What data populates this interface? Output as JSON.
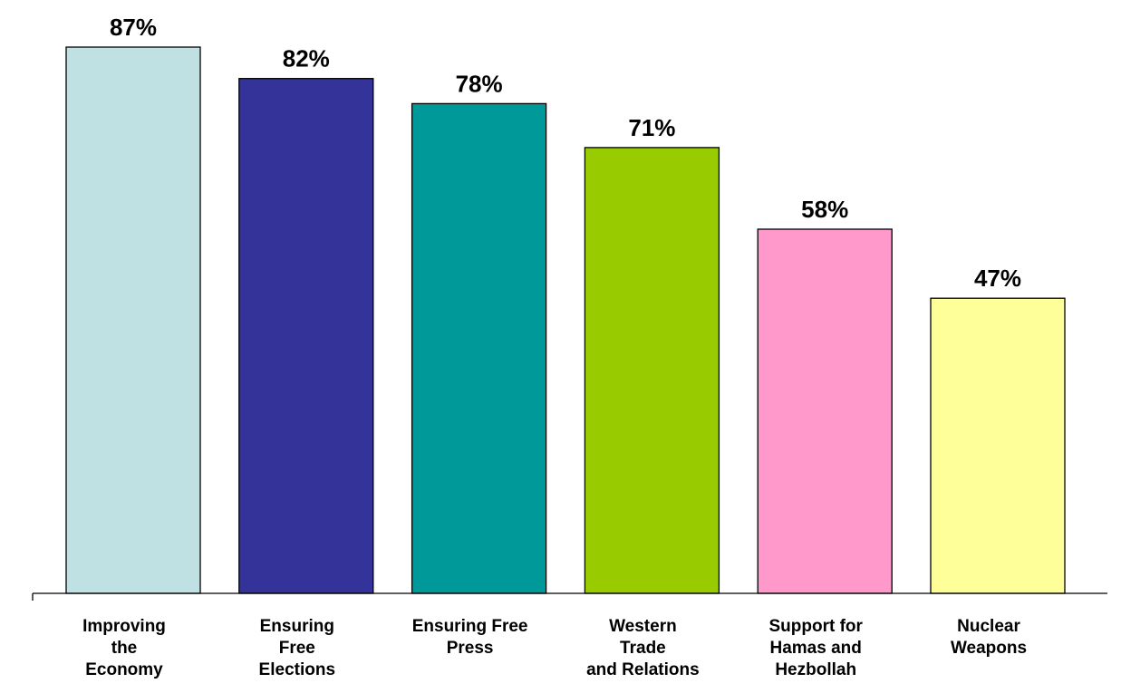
{
  "chart_data": {
    "type": "bar",
    "categories": [
      [
        "Improving",
        "the",
        "Economy"
      ],
      [
        "Ensuring",
        "Free",
        "Elections"
      ],
      [
        "Ensuring Free",
        "Press"
      ],
      [
        "Western",
        "Trade",
        "and Relations"
      ],
      [
        "Support for",
        "Hamas and",
        "Hezbollah"
      ],
      [
        "Nuclear",
        "Weapons"
      ]
    ],
    "values": [
      87,
      82,
      78,
      71,
      58,
      47
    ],
    "value_labels": [
      "87%",
      "82%",
      "78%",
      "71%",
      "58%",
      "47%"
    ],
    "colors": [
      "#BFE1E4",
      "#333399",
      "#009999",
      "#99CC00",
      "#FF99CC",
      "#FFFF99"
    ],
    "ylim": [
      0,
      100
    ],
    "grid": false,
    "legend": "none",
    "title": "",
    "xlabel": "",
    "ylabel": ""
  }
}
